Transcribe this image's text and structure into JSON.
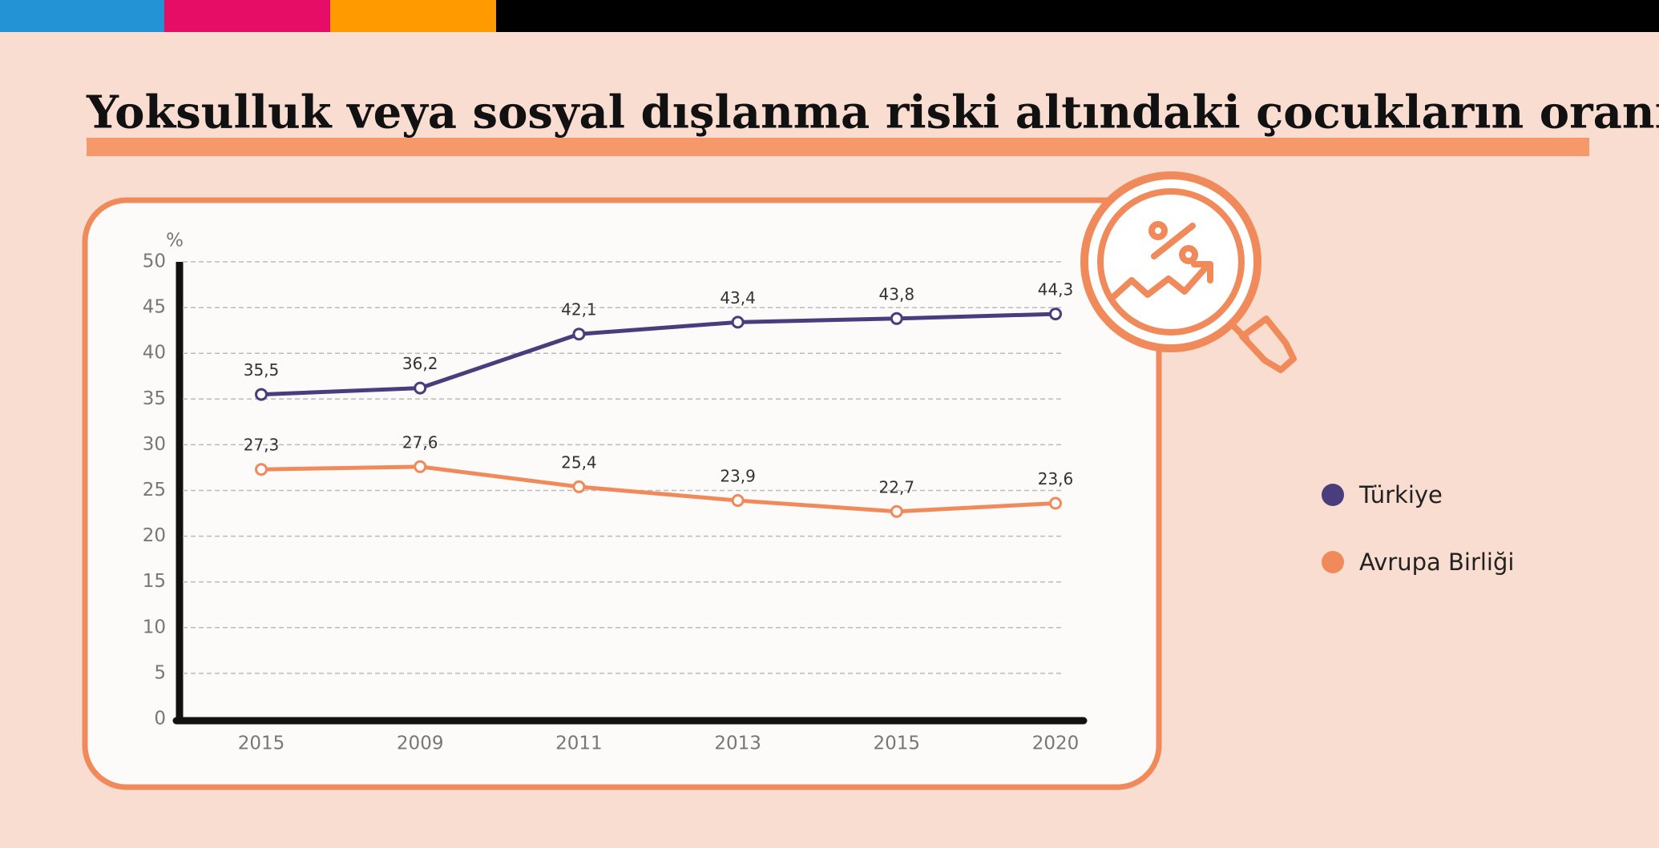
{
  "chart_data": {
    "type": "line",
    "title": "Yoksulluk veya sosyal dışlanma riski altındaki çocukların oranı",
    "y_label": "%",
    "categories": [
      "2015",
      "2009",
      "2011",
      "2013",
      "2015",
      "2020"
    ],
    "series": [
      {
        "name": "Türkiye",
        "color": "#4a3d7d",
        "values": [
          35.5,
          36.2,
          42.1,
          43.4,
          43.8,
          44.3
        ],
        "value_labels": [
          "35,5",
          "36,2",
          "42,1",
          "43,4",
          "43,8",
          "44,3"
        ]
      },
      {
        "name": "Avrupa Birliği",
        "color": "#f08a5a",
        "values": [
          27.3,
          27.6,
          25.4,
          23.9,
          22.7,
          23.6
        ],
        "value_labels": [
          "27,3",
          "27,6",
          "25,4",
          "23,9",
          "22,7",
          "23,6"
        ]
      }
    ],
    "ylim": [
      0,
      50
    ],
    "yticks": [
      0,
      5,
      10,
      15,
      20,
      25,
      30,
      35,
      40,
      45,
      50
    ],
    "grid": true,
    "legend": "right"
  }
}
